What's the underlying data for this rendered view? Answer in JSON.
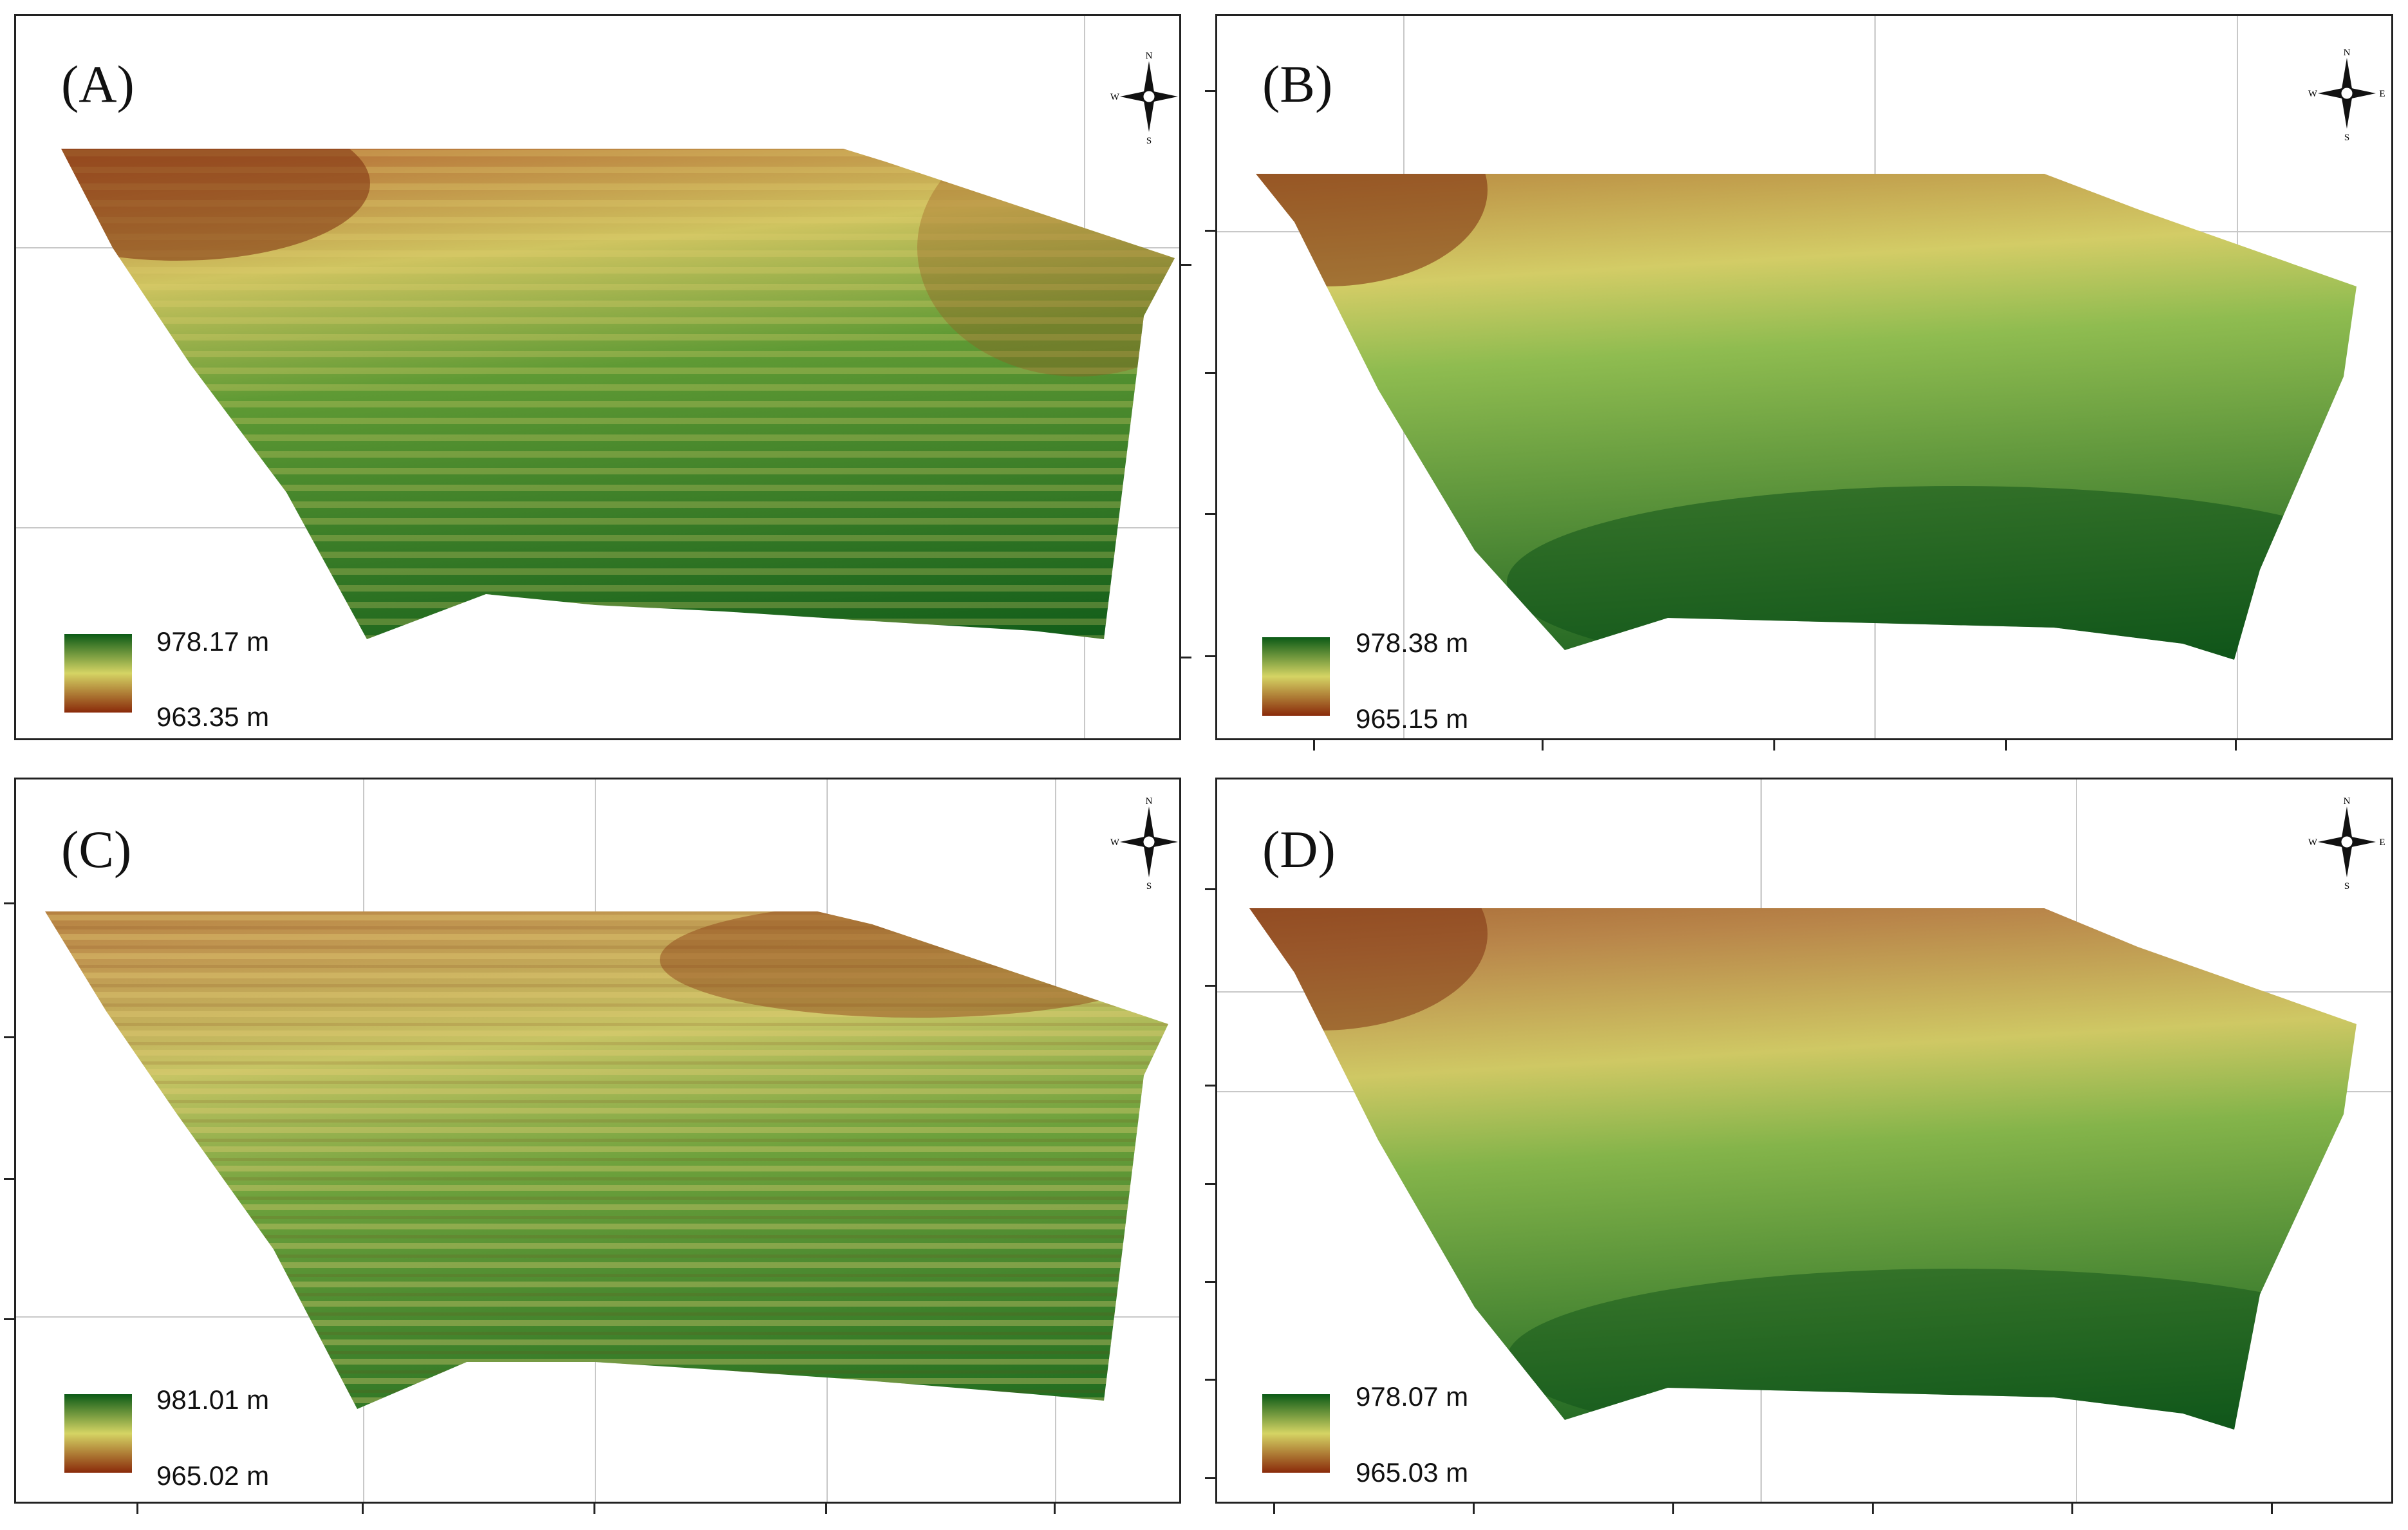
{
  "figure": {
    "panels": [
      {
        "id": "A",
        "label": "(A)",
        "legend": {
          "max": "978.17 m",
          "min": "963.35 m"
        },
        "style": "striped-fine"
      },
      {
        "id": "B",
        "label": "(B)",
        "legend": {
          "max": "978.38 m",
          "min": "965.15 m"
        },
        "style": "smooth"
      },
      {
        "id": "C",
        "label": "(C)",
        "legend": {
          "max": "981.01 m",
          "min": "965.02 m"
        },
        "style": "striped-coarse"
      },
      {
        "id": "D",
        "label": "(D)",
        "legend": {
          "max": "978.07 m",
          "min": "965.03 m"
        },
        "style": "smooth"
      }
    ],
    "compass": {
      "n": "N",
      "s": "S",
      "e": "E",
      "w": "W"
    },
    "colors": {
      "high": "#0b5a16",
      "mid": "#d5d464",
      "low": "#8a2a0a",
      "grid": "#c8c8c8"
    }
  }
}
